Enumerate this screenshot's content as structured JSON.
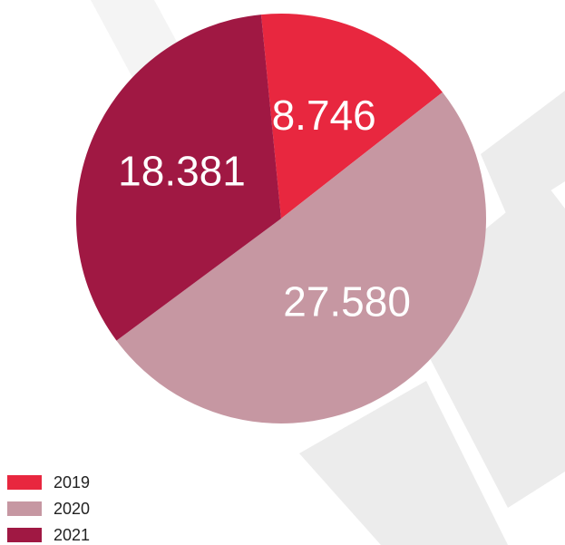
{
  "chart_data": {
    "type": "pie",
    "categories": [
      "2019",
      "2020",
      "2021"
    ],
    "values": [
      8746,
      27580,
      18381
    ],
    "value_labels": [
      "8.746",
      "27.580",
      "18.381"
    ],
    "colors": [
      "#e8273f",
      "#c697a2",
      "#a01843"
    ],
    "legend": "bottom-left"
  }
}
